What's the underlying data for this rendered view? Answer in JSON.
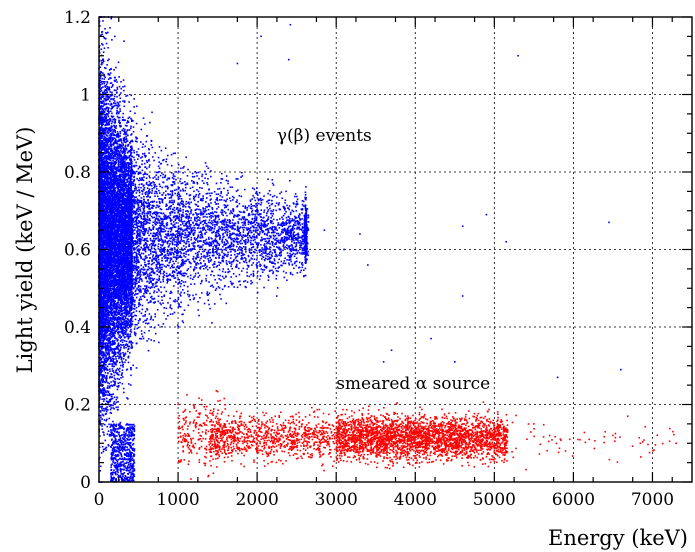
{
  "chart_data": {
    "type": "scatter",
    "xlabel": "Energy (keV)",
    "ylabel": "Light yield (keV / MeV)",
    "xlim": [
      0,
      7500
    ],
    "ylim": [
      0,
      1.2
    ],
    "x_ticks": [
      "0",
      "1000",
      "2000",
      "3000",
      "4000",
      "5000",
      "6000",
      "7000"
    ],
    "y_ticks": [
      "0",
      "0.2",
      "0.4",
      "0.6",
      "0.8",
      "1",
      "1.2"
    ],
    "grid": true,
    "annotations": [
      {
        "text": "γ(β) events",
        "x": 2250,
        "y": 0.88
      },
      {
        "text": "smeared α source",
        "x": 3000,
        "y": 0.24
      }
    ],
    "series": [
      {
        "color": "#0000ff",
        "description_points": [
          [
            80,
            0.65
          ],
          [
            150,
            0.95
          ],
          [
            200,
            1.15
          ],
          [
            250,
            0.4
          ],
          [
            300,
            0.2
          ],
          [
            350,
            0.05
          ],
          [
            400,
            0.62
          ],
          [
            500,
            0.75
          ],
          [
            600,
            0.55
          ],
          [
            700,
            0.82
          ],
          [
            800,
            0.45
          ],
          [
            900,
            0.7
          ],
          [
            1000,
            0.65
          ],
          [
            1200,
            0.78
          ],
          [
            1400,
            0.6
          ],
          [
            1600,
            0.72
          ],
          [
            1800,
            0.58
          ],
          [
            2000,
            0.66
          ],
          [
            2200,
            0.61
          ],
          [
            2400,
            0.63
          ],
          [
            2600,
            0.62
          ],
          [
            2650,
            0.7
          ],
          [
            2650,
            0.55
          ],
          [
            1750,
            1.08
          ],
          [
            2050,
            1.15
          ],
          [
            2400,
            1.09
          ],
          [
            2420,
            1.18
          ],
          [
            5300,
            1.1
          ],
          [
            2850,
            0.65
          ],
          [
            3100,
            0.6
          ],
          [
            3300,
            0.64
          ],
          [
            3400,
            0.56
          ],
          [
            4600,
            0.66
          ],
          [
            4900,
            0.69
          ],
          [
            5150,
            0.62
          ],
          [
            6450,
            0.67
          ],
          [
            3700,
            0.34
          ],
          [
            3600,
            0.31
          ],
          [
            4200,
            0.37
          ],
          [
            4500,
            0.31
          ],
          [
            4600,
            0.48
          ],
          [
            5800,
            0.27
          ],
          [
            6600,
            0.29
          ],
          [
            2200,
            0.28
          ],
          [
            2500,
            0.26
          ],
          [
            1300,
            0.25
          ]
        ]
      },
      {
        "color": "#ff0000",
        "description_points": [
          [
            1100,
            0.12
          ],
          [
            1300,
            0.2
          ],
          [
            1500,
            0.08
          ],
          [
            1800,
            0.15
          ],
          [
            2000,
            0.1
          ],
          [
            2300,
            0.18
          ],
          [
            2500,
            0.06
          ],
          [
            2800,
            0.14
          ],
          [
            3000,
            0.12
          ],
          [
            3200,
            0.09
          ],
          [
            3500,
            0.16
          ],
          [
            3800,
            0.11
          ],
          [
            4000,
            0.13
          ],
          [
            4200,
            0.1
          ],
          [
            4400,
            0.15
          ],
          [
            4550,
            0.12
          ],
          [
            4800,
            0.11
          ],
          [
            5000,
            0.13
          ],
          [
            5150,
            0.1
          ],
          [
            5500,
            0.15
          ],
          [
            5700,
            0.12
          ],
          [
            5900,
            0.08
          ],
          [
            6200,
            0.11
          ],
          [
            6500,
            0.12
          ],
          [
            7300,
            0.1
          ]
        ]
      }
    ]
  }
}
